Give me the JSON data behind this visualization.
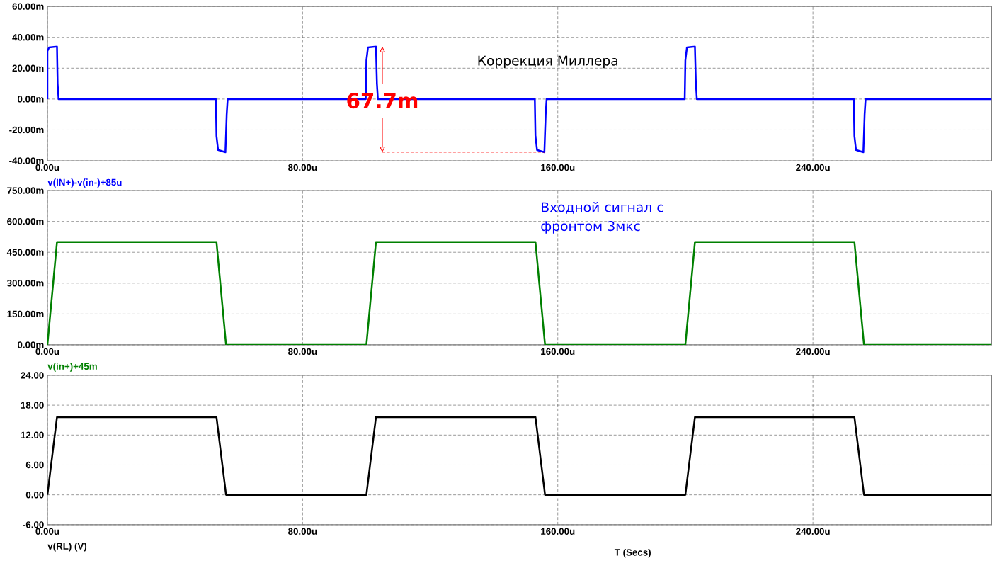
{
  "chart_data": [
    {
      "type": "line",
      "xlim": [
        0,
        296
      ],
      "xticks": [
        {
          "value": 0,
          "label": "0.00u"
        },
        {
          "value": 80,
          "label": "80.00u"
        },
        {
          "value": 160,
          "label": "160.00u"
        },
        {
          "value": 240,
          "label": "240.00u"
        }
      ],
      "ylim": [
        -40,
        60
      ],
      "yticks": [
        {
          "value": -40,
          "label": "-40.00m"
        },
        {
          "value": -20,
          "label": "-20.00m"
        },
        {
          "value": 0,
          "label": "0.00m"
        },
        {
          "value": 20,
          "label": "20.00m"
        },
        {
          "value": 40,
          "label": "40.00m"
        },
        {
          "value": 60,
          "label": "60.00m"
        }
      ],
      "grid": true,
      "series": [
        {
          "name": "v(IN+)-v(in-)+85u",
          "color": "#0000ff",
          "x": [
            0,
            0,
            0.5,
            3,
            3.2,
            3.5,
            52.8,
            53,
            53.5,
            55.8,
            56.2,
            56.5,
            99.8,
            100,
            100.5,
            103,
            103.3,
            103.6,
            152.8,
            153,
            153.5,
            155.8,
            156.2,
            156.5,
            199.8,
            200,
            200.5,
            203,
            203.3,
            203.6,
            252.8,
            253,
            253.5,
            255.8,
            256.2,
            256.5,
            296
          ],
          "values": [
            0,
            31,
            33.5,
            34,
            10,
            0,
            0,
            -24,
            -33,
            -34.5,
            -10,
            0,
            0,
            25,
            33.5,
            34,
            10,
            0,
            0,
            -24,
            -33,
            -34.5,
            -10,
            0,
            0,
            25,
            33.5,
            34,
            10,
            0,
            0,
            -24,
            -33,
            -34.5,
            -10,
            0,
            0
          ]
        }
      ],
      "annotations": [
        "Коррекция Миллера",
        {
          "text": "67.7m",
          "x": 105,
          "y": -1
        }
      ]
    },
    {
      "type": "line",
      "xlim": [
        0,
        296
      ],
      "xticks": [
        {
          "value": 0,
          "label": "0.00u"
        },
        {
          "value": 80,
          "label": "80.00u"
        },
        {
          "value": 160,
          "label": "160.00u"
        },
        {
          "value": 240,
          "label": "240.00u"
        }
      ],
      "ylim": [
        0,
        750
      ],
      "yticks": [
        {
          "value": 0,
          "label": "0.00m"
        },
        {
          "value": 150,
          "label": "150.00m"
        },
        {
          "value": 300,
          "label": "300.00m"
        },
        {
          "value": 450,
          "label": "450.00m"
        },
        {
          "value": 600,
          "label": "600.00m"
        },
        {
          "value": 750,
          "label": "750.00m"
        }
      ],
      "grid": true,
      "series": [
        {
          "name": "v(in+)+45m",
          "color": "#008000",
          "x": [
            0,
            3,
            53,
            56,
            100,
            103,
            153,
            156,
            200,
            203,
            253,
            256,
            296
          ],
          "values": [
            0,
            500,
            500,
            0,
            0,
            500,
            500,
            0,
            0,
            500,
            500,
            0,
            0
          ]
        }
      ],
      "annotations": [
        "Входной сигнал с фронтом 3мкс"
      ]
    },
    {
      "type": "line",
      "xlabel": "T (Secs)",
      "xlim": [
        0,
        296
      ],
      "xticks": [
        {
          "value": 0,
          "label": "0.00u"
        },
        {
          "value": 80,
          "label": "80.00u"
        },
        {
          "value": 160,
          "label": "160.00u"
        },
        {
          "value": 240,
          "label": "240.00u"
        }
      ],
      "ylim": [
        -6,
        24
      ],
      "yticks": [
        {
          "value": -6,
          "label": "-6.00"
        },
        {
          "value": 0,
          "label": "0.00"
        },
        {
          "value": 6,
          "label": "6.00"
        },
        {
          "value": 12,
          "label": "12.00"
        },
        {
          "value": 18,
          "label": "18.00"
        },
        {
          "value": 24,
          "label": "24.00"
        }
      ],
      "grid": true,
      "series": [
        {
          "name": "v(RL) (V)",
          "color": "#000000",
          "x": [
            0,
            3,
            53,
            56,
            100,
            103,
            153,
            156,
            200,
            203,
            253,
            256,
            296
          ],
          "values": [
            0,
            15.6,
            15.6,
            0,
            0,
            15.6,
            15.6,
            0,
            0,
            15.6,
            15.6,
            0,
            0
          ]
        }
      ]
    }
  ]
}
